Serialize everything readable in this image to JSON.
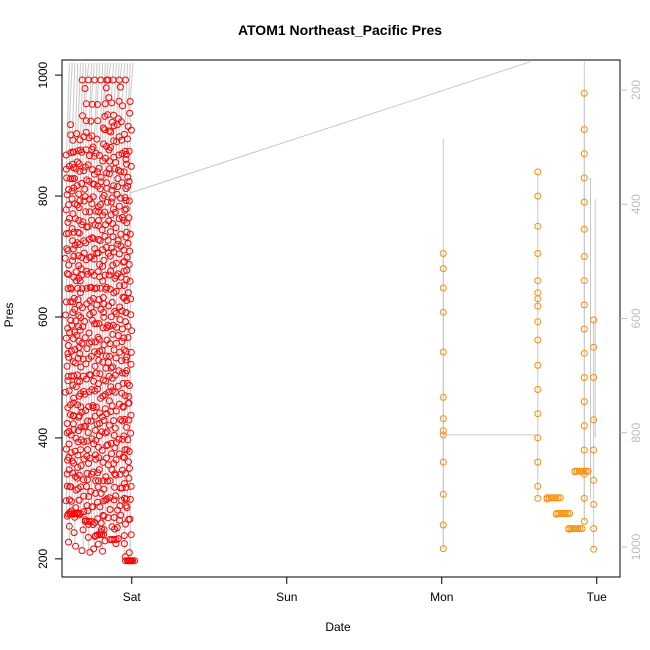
{
  "chart_data": {
    "type": "scatter",
    "title": "ATOM1 Northeast_Pacific Pres",
    "xlabel": "Date",
    "ylabel": "Pres",
    "x_ticks": [
      "Sat",
      "Sun",
      "Mon",
      "Tue"
    ],
    "x_tick_days": [
      1,
      2,
      3,
      4
    ],
    "xlim_days": [
      0.55,
      4.15
    ],
    "ylim": [
      170,
      1025
    ],
    "y_ticks": [
      200,
      400,
      600,
      800,
      1000
    ],
    "y_ticks_right": [
      200,
      400,
      600,
      800,
      1000
    ],
    "y_right_note": "secondary depth axis (inverted), grey",
    "colors": {
      "early_series": "#ff0000",
      "late_series": "#ff8c00",
      "trace_line": "#c8c8c8",
      "axis": "#000000",
      "right_axis": "#bdbdbd"
    },
    "series": [
      {
        "name": "early profiles (red)",
        "x_range_days": [
          0.58,
          0.99
        ],
        "columns": 24,
        "y_range": [
          197,
          997
        ],
        "notes": "dense vertical profiles; cluster near 270-280 at start, minimum ~197 near Sat"
      },
      {
        "name": "late profiles (orange)",
        "points": [
          {
            "x": 3.01,
            "y": [
              705,
              680,
              648,
              608,
              542,
              467,
              432,
              412,
              405,
              360,
              307,
              256,
              217
            ]
          },
          {
            "x": 3.62,
            "y": [
              840,
              800,
              750,
              705,
              660,
              640,
              630,
              618,
              592,
              562,
              520,
              480,
              440,
              400,
              360,
              320,
              300
            ]
          },
          {
            "x": 3.68,
            "y": [
              301,
              299
            ]
          },
          {
            "x": 3.74,
            "y": [
              275,
              274
            ]
          },
          {
            "x": 3.82,
            "y": [
              250,
              249
            ]
          },
          {
            "x": 3.86,
            "y": [
              345,
              344
            ]
          },
          {
            "x": 3.92,
            "y": [
              970,
              910,
              870,
              830,
              790,
              745,
              700,
              660,
              620,
              580,
              540,
              500,
              460,
              420,
              380,
              340,
              300,
              262
            ]
          },
          {
            "x": 3.98,
            "y": [
              595,
              550,
              500,
              430,
              380,
              330,
              290,
              250,
              216
            ]
          }
        ]
      }
    ]
  }
}
